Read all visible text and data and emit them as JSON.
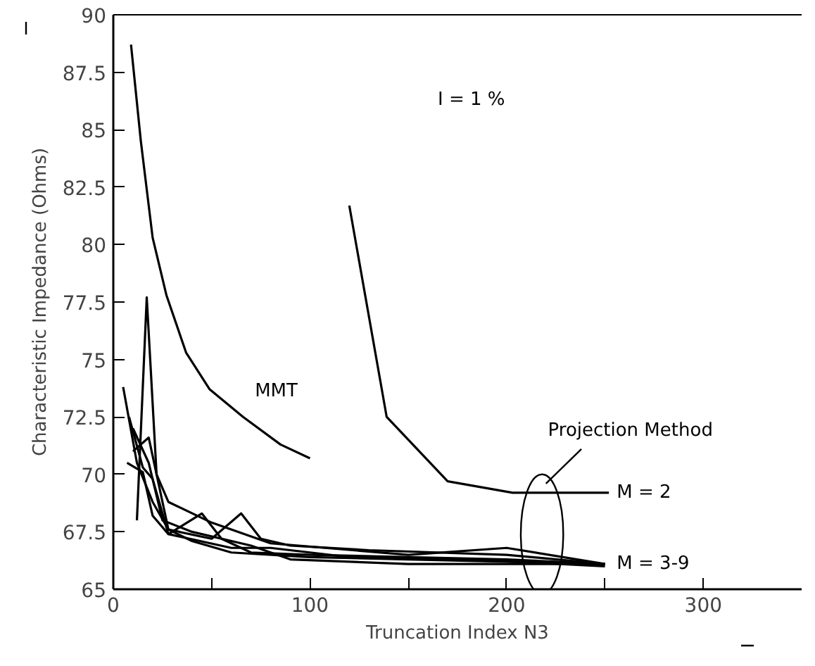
{
  "chart_data": {
    "type": "line",
    "xlabel": "Truncation Index N3",
    "ylabel": "Characteristic Impedance (Ohms)",
    "xlim": [
      0,
      350
    ],
    "ylim": [
      65,
      90
    ],
    "xticks": [
      0,
      {
        "value": 50,
        "label": null
      },
      100,
      {
        "value": 150,
        "label": null
      },
      200,
      {
        "value": 250,
        "label": null
      },
      300
    ],
    "yticks": [
      65,
      67.5,
      70,
      72.5,
      75,
      77.5,
      80,
      82.5,
      85,
      87.5,
      90
    ],
    "grid": false,
    "marker": "none",
    "line_style": "solid",
    "series": [
      {
        "color": "#000000",
        "x": [
          9,
          14,
          20,
          27,
          37,
          49,
          66,
          85,
          100
        ],
        "values": [
          88.7,
          84.5,
          80.3,
          77.8,
          75.3,
          73.7,
          72.5,
          71.3,
          70.7
        ]
      },
      {
        "color": "#000000",
        "x": [
          120,
          139,
          170,
          203,
          252
        ],
        "values": [
          81.7,
          72.5,
          69.7,
          69.2,
          69.2
        ]
      },
      {
        "color": "#000000",
        "x": [
          5,
          12,
          20,
          28,
          40,
          60,
          100,
          150,
          200,
          250
        ],
        "values": [
          73.8,
          70.5,
          68.8,
          67.6,
          67.1,
          66.6,
          66.4,
          66.3,
          66.2,
          66.1
        ]
      },
      {
        "color": "#000000",
        "x": [
          8,
          15,
          20,
          28,
          45,
          55,
          70,
          100,
          150,
          200,
          250
        ],
        "values": [
          72.5,
          70.3,
          69.8,
          67.4,
          68.3,
          67.2,
          66.6,
          66.5,
          66.4,
          66.3,
          66.1
        ]
      },
      {
        "color": "#000000",
        "x": [
          10,
          18,
          28,
          50,
          65,
          75,
          90,
          130,
          200,
          250
        ],
        "values": [
          71,
          71.6,
          67.6,
          67.2,
          68.3,
          67.2,
          66.9,
          66.7,
          66.5,
          66.1
        ]
      },
      {
        "color": "#000000",
        "x": [
          12,
          17,
          22,
          28,
          50,
          80,
          150,
          200,
          250
        ],
        "values": [
          68,
          77.7,
          70,
          68.8,
          67.9,
          67,
          66.5,
          66.8,
          66.1
        ]
      },
      {
        "color": "#000000",
        "x": [
          7,
          15,
          20,
          28,
          60,
          80,
          120,
          180,
          250
        ],
        "values": [
          70.5,
          70.1,
          68.2,
          67.4,
          66.8,
          66.8,
          66.4,
          66.3,
          66
        ]
      },
      {
        "color": "#000000",
        "x": [
          10,
          18,
          25,
          40,
          70,
          90,
          150,
          200,
          250
        ],
        "values": [
          72,
          70.5,
          68,
          67.5,
          66.9,
          66.3,
          66.1,
          66.1,
          66.1
        ]
      }
    ],
    "annotations": [
      "MMT",
      "M = 2",
      "M = 3-9",
      "Projection Method",
      "I = 1 %"
    ]
  }
}
